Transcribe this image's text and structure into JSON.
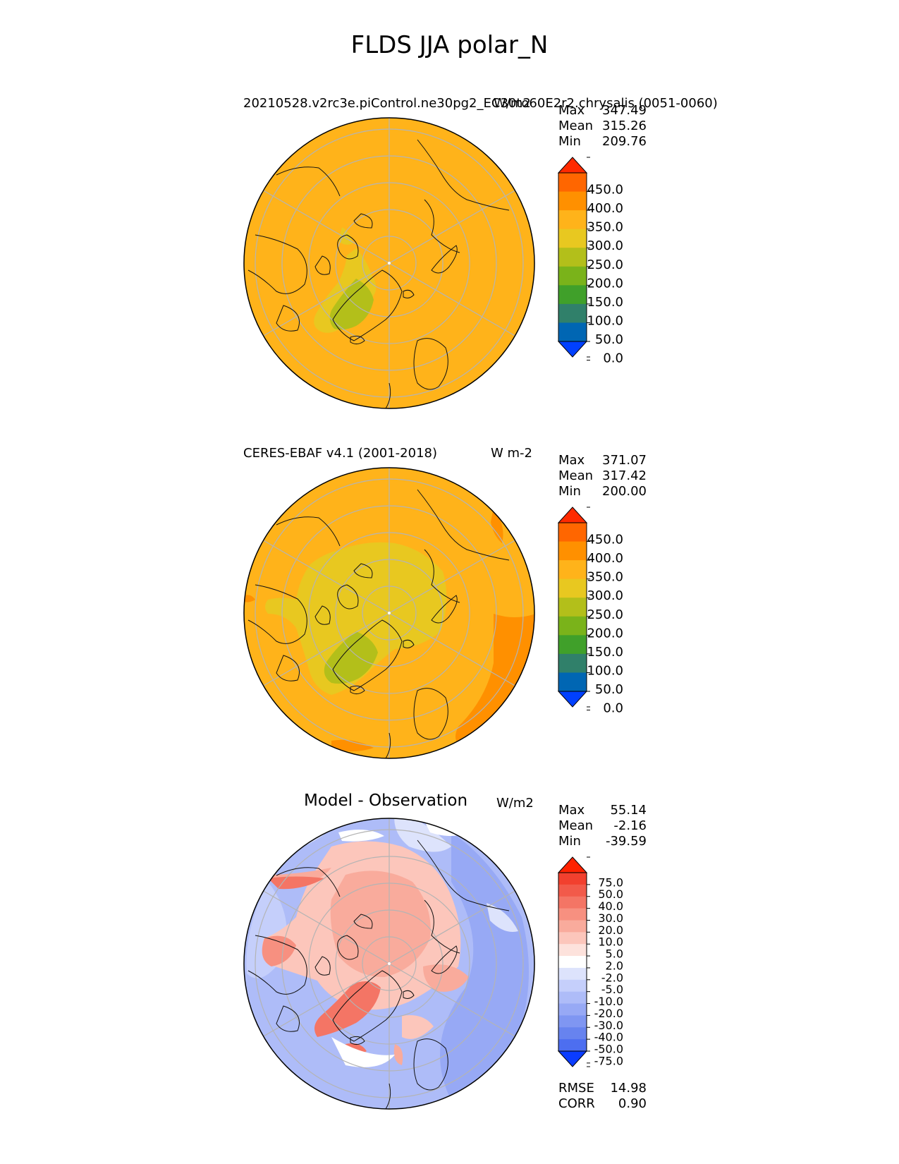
{
  "figure": {
    "title": "FLDS JJA polar_N"
  },
  "panels": [
    {
      "title": "20210528.v2rc3e.piControl.ne30pg2_EC30to60E2r2.chrysalis (0051-0060)",
      "units": "W/m2",
      "stats": [
        {
          "label": "Max",
          "value": "347.49"
        },
        {
          "label": "Mean",
          "value": "315.26"
        },
        {
          "label": "Min",
          "value": "209.76"
        }
      ],
      "colorbar": {
        "ticks": [
          "450.0",
          "400.0",
          "350.0",
          "300.0",
          "250.0",
          "200.0",
          "150.0",
          "100.0",
          "50.0",
          "0.0"
        ],
        "colors": [
          "#ff2a00",
          "#ff6600",
          "#ff9000",
          "#ffb31a",
          "#e8c820",
          "#b3bf1a",
          "#7ab31a",
          "#40a02a",
          "#30806a",
          "#0066b3",
          "#0040ff"
        ]
      }
    },
    {
      "title": "CERES-EBAF v4.1 (2001-2018)",
      "units": "W m-2",
      "stats": [
        {
          "label": "Max",
          "value": "371.07"
        },
        {
          "label": "Mean",
          "value": "317.42"
        },
        {
          "label": "Min",
          "value": "200.00"
        }
      ],
      "colorbar": {
        "ticks": [
          "450.0",
          "400.0",
          "350.0",
          "300.0",
          "250.0",
          "200.0",
          "150.0",
          "100.0",
          "50.0",
          "0.0"
        ],
        "colors": [
          "#ff2a00",
          "#ff6600",
          "#ff9000",
          "#ffb31a",
          "#e8c820",
          "#b3bf1a",
          "#7ab31a",
          "#40a02a",
          "#30806a",
          "#0066b3",
          "#0040ff"
        ]
      }
    },
    {
      "title": "Model - Observation",
      "units": "W/m2",
      "stats": [
        {
          "label": "Max",
          "value": "55.14"
        },
        {
          "label": "Mean",
          "value": "-2.16"
        },
        {
          "label": "Min",
          "value": "-39.59"
        }
      ],
      "extra_stats": [
        {
          "label": "RMSE",
          "value": "14.98"
        },
        {
          "label": "CORR",
          "value": "0.90"
        }
      ],
      "colorbar": {
        "ticks": [
          "75.0",
          "50.0",
          "40.0",
          "30.0",
          "20.0",
          "10.0",
          "5.0",
          "2.0",
          "-2.0",
          "-5.0",
          "-10.0",
          "-20.0",
          "-30.0",
          "-40.0",
          "-50.0",
          "-75.0"
        ],
        "colors": [
          "#ff2200",
          "#f2402e",
          "#f25a4a",
          "#f47565",
          "#f79080",
          "#f9ab9c",
          "#fcc6bb",
          "#fde2dc",
          "#ffffff",
          "#dde3fc",
          "#c5cffb",
          "#aebcf8",
          "#97a9f5",
          "#7f96f2",
          "#6783ef",
          "#4d6ef0",
          "#0a3cff"
        ]
      }
    }
  ],
  "colors": {
    "land_outline": "#111111",
    "graticule": "#b4b4b4",
    "field_main": "#ffb31a"
  }
}
